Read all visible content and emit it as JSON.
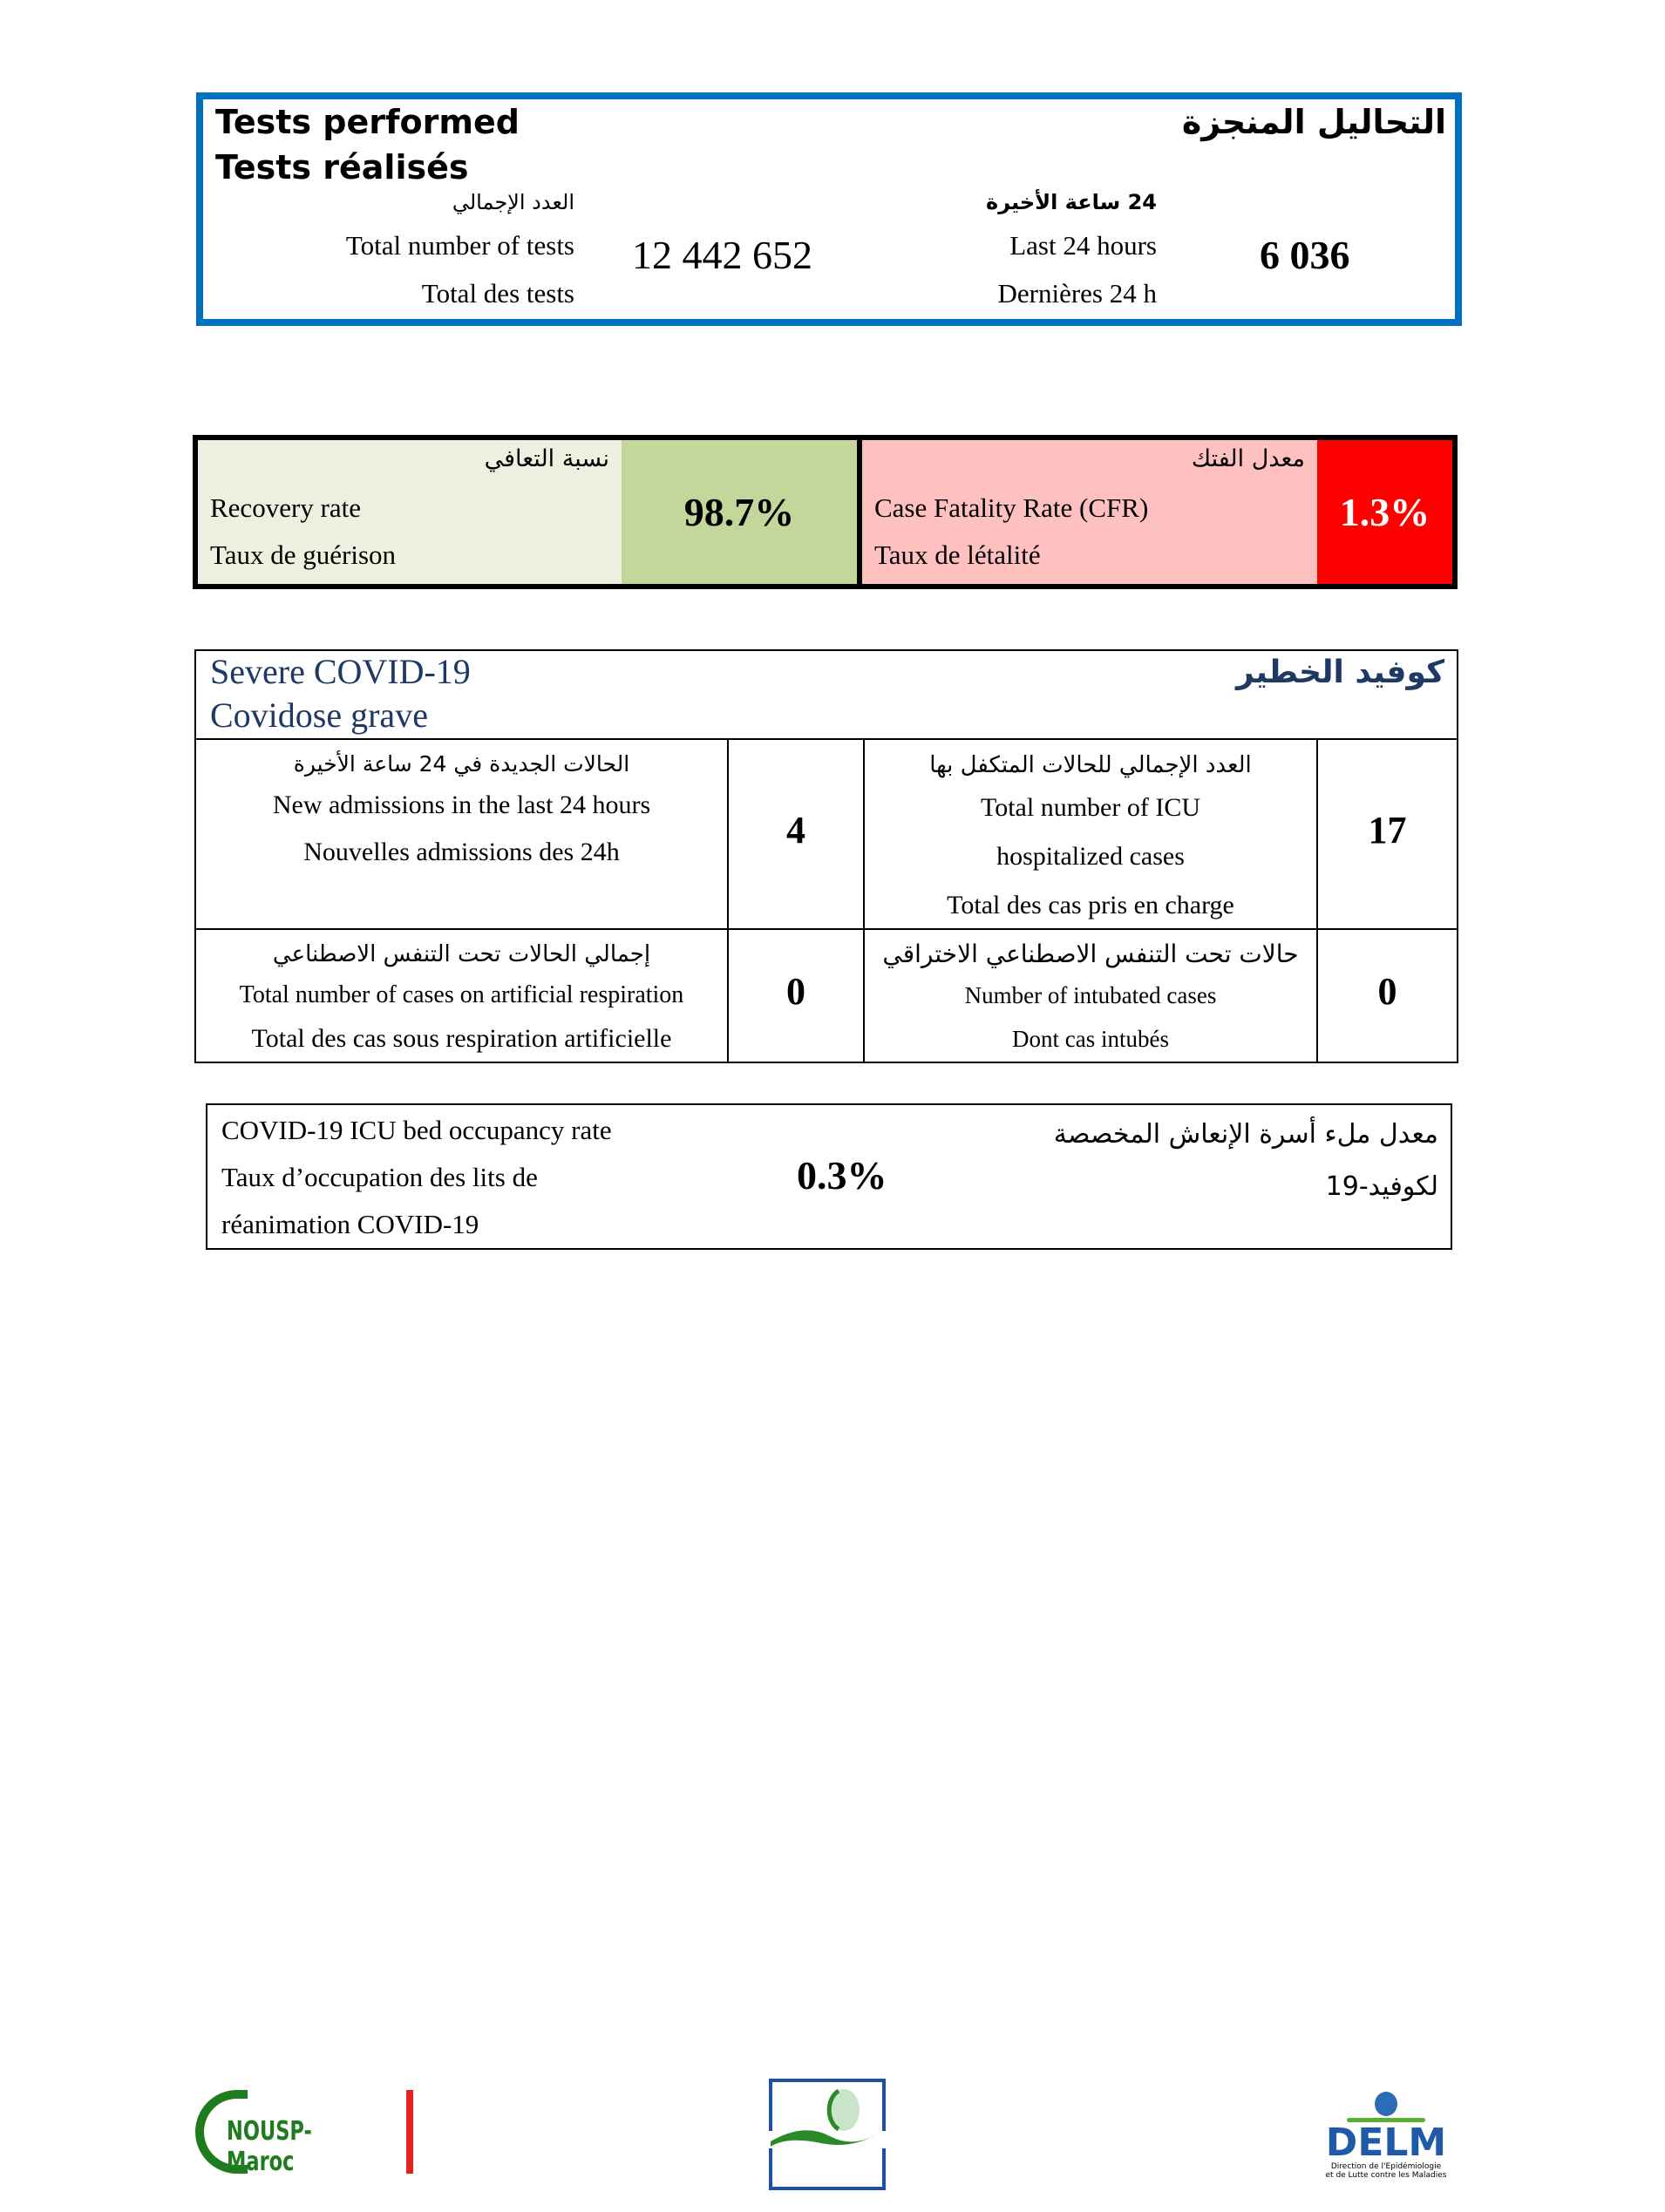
{
  "tests": {
    "title_en": "Tests performed",
    "title_fr": "Tests réalisés",
    "title_ar": "التحاليل المنجزة",
    "total": {
      "label_ar": "العدد الإجمالي",
      "label_en": "Total number of tests",
      "label_fr": "Total des tests",
      "value": "12 442 652"
    },
    "last24": {
      "label_ar": "24 ساعة الأخيرة",
      "label_en": "Last 24 hours",
      "label_fr": "Dernières 24 h",
      "value": "6 036"
    },
    "border_color": "#0070c0"
  },
  "rates": {
    "recovery": {
      "label_ar": "نسبة التعافي",
      "label_en": "Recovery rate",
      "label_fr": "Taux de guérison",
      "value": "98.7%",
      "bg": "#ebf1de",
      "value_bg": "#c4d79b"
    },
    "cfr": {
      "label_ar": "معدل الفتك",
      "label_en": "Case Fatality Rate (CFR)",
      "label_fr": "Taux de létalité",
      "value": "1.3%",
      "bg": "#ffc0c0",
      "value_bg": "#ff0000"
    }
  },
  "severe": {
    "title_en": "Severe COVID-19",
    "title_fr": "Covidose grave",
    "title_ar": "كوفيد الخطير",
    "title_color": "#1f3864",
    "new_adm": {
      "ar": "الحالات الجديدة في 24 ساعة الأخيرة",
      "en": "New admissions in the last 24 hours",
      "fr": "Nouvelles admissions des 24h",
      "value": "4"
    },
    "icu": {
      "ar": "العدد الإجمالي للحالات المتكفل بها",
      "en1": "Total number of ICU",
      "en2": "hospitalized cases",
      "fr": "Total des cas pris en charge",
      "value": "17"
    },
    "resp": {
      "ar": "إجمالي الحالات تحت التنفس الاصطناعي",
      "en": "Total number of cases on artificial respiration",
      "fr": "Total des cas sous respiration artificielle",
      "value": "0"
    },
    "intub": {
      "ar": "حالات تحت التنفس الاصطناعي الاختراقي",
      "en": "Number of intubated cases",
      "fr": "Dont cas intubés",
      "value": "0"
    }
  },
  "occupancy": {
    "en": "COVID-19 ICU bed occupancy rate",
    "fr1": "Taux d’occupation des lits de",
    "fr2": "réanimation COVID-19",
    "ar1": "معدل ملء أسرة الإنعاش المخصصة",
    "ar2": "لكوفيد-19",
    "value": "0.3%"
  },
  "logos": {
    "nousp": "NOUSP-Maroc",
    "delm": "DELM",
    "delm_sub1": "Direction de l'Epidémiologie",
    "delm_sub2": "et de Lutte contre les Maladies"
  }
}
